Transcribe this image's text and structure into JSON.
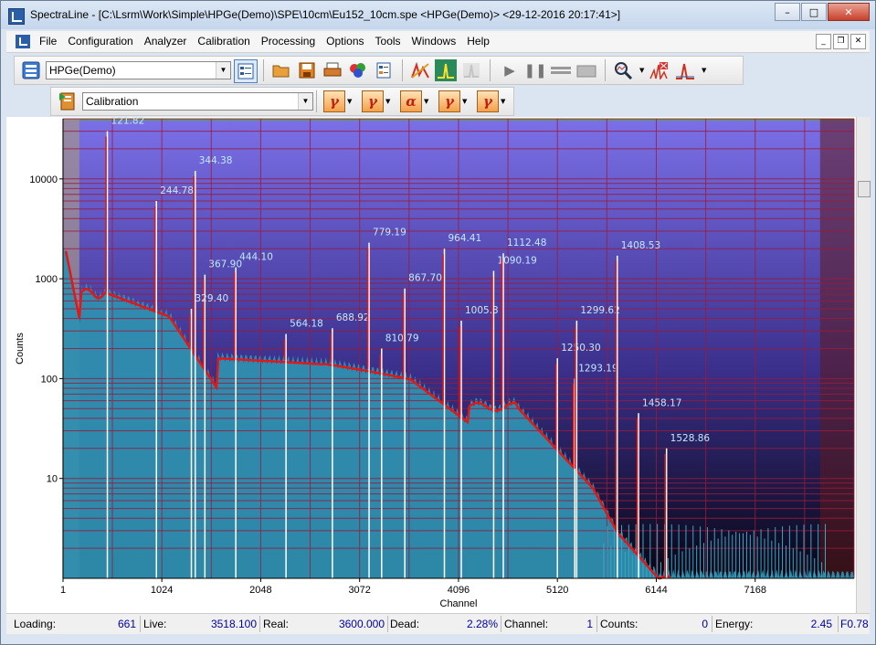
{
  "window": {
    "title": "SpectraLine - [C:\\Lsrm\\Work\\Simple\\HPGe(Demo)\\SPE\\10cm\\Eu152_10cm.spe <HPGe(Demo)> <29-12-2016 20:17:41>]",
    "min": "–",
    "max": "□",
    "close": "✕"
  },
  "menu": {
    "items": [
      "File",
      "Configuration",
      "Analyzer",
      "Calibration",
      "Processing",
      "Options",
      "Tools",
      "Windows",
      "Help"
    ],
    "mdi": [
      "_",
      "❐",
      "✕"
    ]
  },
  "toolbar1": {
    "detector": "HPGe(Demo)"
  },
  "toolbar2": {
    "mode": "Calibration",
    "buttons": [
      "γ",
      "γ",
      "α",
      "γ",
      "γ"
    ]
  },
  "chart_data": {
    "type": "area",
    "xlabel": "Channel",
    "ylabel": "Counts",
    "y_scale": "log",
    "x_ticks": [
      "1",
      "1024",
      "2048",
      "3072",
      "4096",
      "5120",
      "6144",
      "7168"
    ],
    "y_ticks": [
      "10",
      "100",
      "1000",
      "10000"
    ],
    "xlim": [
      1,
      8192
    ],
    "ylim": [
      1,
      40000
    ],
    "colors": {
      "background_top": "#7b70e8",
      "background_bottom": "#060612",
      "fill": "#2f8fb0",
      "fill_light": "#3aa6c6",
      "baseline": "#e01818",
      "grid": "#9a1b3c",
      "peak_line": "#ffffff",
      "peak_label": "#bfeaff",
      "region_left": "#a09090",
      "region_right": "#5c1a1a"
    },
    "peaks": [
      {
        "label": "121.82",
        "channel": 460,
        "height": 30000
      },
      {
        "label": "244.78",
        "channel": 968,
        "height": 6000
      },
      {
        "label": "344.38",
        "channel": 1370,
        "height": 12000
      },
      {
        "label": "367.90",
        "channel": 1470,
        "height": 1100
      },
      {
        "label": "329.40",
        "channel": 1330,
        "height": 500
      },
      {
        "label": "444.10",
        "channel": 1790,
        "height": 1300
      },
      {
        "label": "564.18",
        "channel": 2310,
        "height": 280
      },
      {
        "label": "688.92",
        "channel": 2790,
        "height": 320
      },
      {
        "label": "779.19",
        "channel": 3170,
        "height": 2300
      },
      {
        "label": "810.79",
        "channel": 3300,
        "height": 200
      },
      {
        "label": "867.70",
        "channel": 3540,
        "height": 800
      },
      {
        "label": "964.41",
        "channel": 3950,
        "height": 2000
      },
      {
        "label": "1005.3",
        "channel": 4125,
        "height": 380
      },
      {
        "label": "1090.19",
        "channel": 4460,
        "height": 1200
      },
      {
        "label": "1112.48",
        "channel": 4560,
        "height": 1800
      },
      {
        "label": "1250.30",
        "channel": 5120,
        "height": 160
      },
      {
        "label": "1293.19",
        "channel": 5300,
        "height": 100
      },
      {
        "label": "1299.62",
        "channel": 5320,
        "height": 380
      },
      {
        "label": "1408.53",
        "channel": 5740,
        "height": 1700
      },
      {
        "label": "1458.17",
        "channel": 5960,
        "height": 45
      },
      {
        "label": "1528.86",
        "channel": 6250,
        "height": 20
      }
    ]
  },
  "status": {
    "loading_label": "Loading:",
    "loading": "661",
    "live_label": "Live:",
    "live": "3518.100",
    "real_label": "Real:",
    "real": "3600.000",
    "dead_label": "Dead:",
    "dead": "2.28%",
    "channel_label": "Channel:",
    "channel": "1",
    "counts_label": "Counts:",
    "counts": "0",
    "energy_label": "Energy:",
    "energy": "2.45",
    "extra": "F0.78"
  }
}
